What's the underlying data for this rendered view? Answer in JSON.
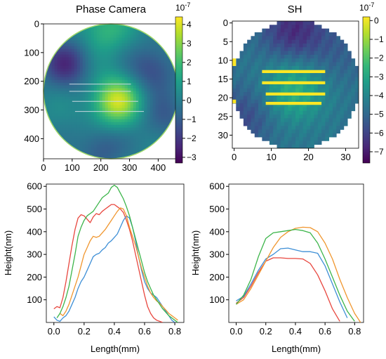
{
  "colors": {
    "viridis_stops": [
      "#440154",
      "#482878",
      "#3e4989",
      "#31688e",
      "#26828e",
      "#1f9e89",
      "#35b779",
      "#6ece58",
      "#b5de2b",
      "#fde725"
    ],
    "series_colors": [
      "#e8473f",
      "#3e8fd6",
      "#f0962e",
      "#3cb54a"
    ],
    "slice_line": "#c8d8e0",
    "sh_stripe": "#fde725"
  },
  "chart_data": [
    {
      "type": "heatmap",
      "title": "Phase Camera",
      "shape": "circular aperture",
      "x_ticks": [
        0,
        100,
        200,
        300,
        400
      ],
      "y_ticks": [
        0,
        100,
        200,
        300,
        400
      ],
      "xlim": [
        0,
        470
      ],
      "ylim": [
        470,
        0
      ],
      "colorbar": {
        "exponent": "10",
        "exponent_power": "-7",
        "ticks": [
          4,
          3,
          2,
          1,
          0,
          -1,
          -2,
          -3
        ],
        "range": [
          -3.3,
          4.4
        ]
      },
      "features": [
        {
          "kind": "high",
          "center": [
            255,
            270
          ],
          "value": 3.8
        },
        {
          "kind": "low",
          "center": [
            80,
            140
          ],
          "value": -2.2
        },
        {
          "kind": "low",
          "center": [
            380,
            160
          ],
          "value": -1.6
        },
        {
          "kind": "low",
          "center": [
            200,
            430
          ],
          "value": -1.2
        },
        {
          "kind": "high",
          "center": [
            210,
            20
          ],
          "value": 1.8
        },
        {
          "kind": "low",
          "center": [
            420,
            330
          ],
          "value": -1.0
        }
      ],
      "slice_lines": [
        {
          "y": 210,
          "x": [
            90,
            305
          ]
        },
        {
          "y": 235,
          "x": [
            90,
            305
          ]
        },
        {
          "y": 270,
          "x": [
            100,
            330
          ]
        },
        {
          "y": 305,
          "x": [
            110,
            350
          ]
        }
      ]
    },
    {
      "type": "heatmap",
      "title": "SH",
      "shape": "pixelated circular aperture",
      "x_ticks": [
        0,
        10,
        20,
        30
      ],
      "y_ticks": [
        0,
        5,
        10,
        15,
        20,
        25,
        30
      ],
      "grid_size": 34,
      "xlim": [
        -0.5,
        33.5
      ],
      "ylim": [
        33.5,
        -0.5
      ],
      "colorbar": {
        "exponent": "10",
        "exponent_power": "-7",
        "ticks": [
          0,
          -1,
          -2,
          -3,
          -4,
          -5,
          -6,
          -7
        ],
        "range": [
          -7.6,
          0.2
        ]
      },
      "features": [
        {
          "kind": "high",
          "center": [
            16,
            18
          ],
          "value": -2.6
        },
        {
          "kind": "low",
          "center": [
            16,
            2
          ],
          "value": -6.6
        },
        {
          "kind": "low",
          "center": [
            3,
            25
          ],
          "value": -5.8
        },
        {
          "kind": "low",
          "center": [
            28,
            8
          ],
          "value": -5.2
        }
      ],
      "highlight_stripes": [
        {
          "row": 13,
          "x": [
            7.5,
            24.5
          ]
        },
        {
          "row": 16,
          "x": [
            7.5,
            24.5
          ]
        },
        {
          "row": 19,
          "x": [
            8.5,
            24.5
          ]
        },
        {
          "row": 21.5,
          "x": [
            8.5,
            23.5
          ]
        }
      ],
      "edge_markers": [
        {
          "row": 10.5,
          "x": [
            -0.5,
            0.5
          ],
          "height": 2
        },
        {
          "row": 21,
          "x": [
            -0.5,
            0.5
          ],
          "height": 1
        }
      ]
    },
    {
      "type": "line",
      "xlabel": "Length(mm)",
      "ylabel": "Height(nm)",
      "xlim": [
        -0.05,
        0.86
      ],
      "ylim": [
        0,
        610
      ],
      "x_ticks": [
        0.0,
        0.2,
        0.4,
        0.6,
        0.8
      ],
      "x_tick_labels": [
        "0.0",
        "0.2",
        "0.4",
        "0.6",
        "0.8"
      ],
      "y_ticks": [
        100,
        200,
        300,
        400,
        500,
        600
      ],
      "series": [
        {
          "color": "#e8473f",
          "x": [
            0.0,
            0.02,
            0.04,
            0.06,
            0.08,
            0.1,
            0.12,
            0.14,
            0.16,
            0.18,
            0.2,
            0.22,
            0.24,
            0.26,
            0.28,
            0.3,
            0.32,
            0.34,
            0.36,
            0.38,
            0.4,
            0.42,
            0.44,
            0.46,
            0.48,
            0.5,
            0.52,
            0.54,
            0.56,
            0.58,
            0.6,
            0.62,
            0.64,
            0.66,
            0.68,
            0.7,
            0.72
          ],
          "y": [
            60,
            70,
            65,
            110,
            180,
            260,
            340,
            410,
            460,
            475,
            470,
            455,
            440,
            465,
            480,
            475,
            490,
            500,
            510,
            520,
            520,
            510,
            500,
            485,
            450,
            410,
            360,
            300,
            240,
            180,
            120,
            70,
            40,
            20,
            10,
            5,
            0
          ]
        },
        {
          "color": "#3e8fd6",
          "x": [
            0.0,
            0.02,
            0.04,
            0.06,
            0.08,
            0.1,
            0.12,
            0.14,
            0.16,
            0.18,
            0.2,
            0.22,
            0.24,
            0.26,
            0.28,
            0.3,
            0.32,
            0.34,
            0.36,
            0.38,
            0.4,
            0.42,
            0.44,
            0.46,
            0.48,
            0.5,
            0.52,
            0.54,
            0.56,
            0.58,
            0.6,
            0.62,
            0.64,
            0.66,
            0.68,
            0.7,
            0.72,
            0.74,
            0.76,
            0.78,
            0.8
          ],
          "y": [
            25,
            10,
            5,
            20,
            30,
            50,
            80,
            110,
            150,
            180,
            200,
            230,
            260,
            290,
            300,
            305,
            320,
            330,
            350,
            360,
            375,
            390,
            420,
            450,
            470,
            460,
            420,
            360,
            290,
            230,
            180,
            150,
            130,
            120,
            110,
            90,
            70,
            50,
            30,
            10,
            0
          ]
        },
        {
          "color": "#f0962e",
          "x": [
            0.04,
            0.06,
            0.08,
            0.1,
            0.12,
            0.14,
            0.16,
            0.18,
            0.2,
            0.22,
            0.24,
            0.26,
            0.28,
            0.3,
            0.32,
            0.34,
            0.36,
            0.38,
            0.4,
            0.42,
            0.44,
            0.46,
            0.48,
            0.5,
            0.52,
            0.54,
            0.56,
            0.58,
            0.6,
            0.62,
            0.64,
            0.66,
            0.68,
            0.7,
            0.72,
            0.74,
            0.76,
            0.78,
            0.8,
            0.82
          ],
          "y": [
            40,
            30,
            50,
            80,
            120,
            160,
            200,
            250,
            300,
            330,
            360,
            380,
            375,
            380,
            395,
            410,
            430,
            450,
            470,
            490,
            505,
            500,
            470,
            420,
            380,
            340,
            290,
            240,
            200,
            160,
            130,
            110,
            95,
            85,
            70,
            55,
            40,
            30,
            20,
            10
          ]
        },
        {
          "color": "#3cb54a",
          "x": [
            0.02,
            0.04,
            0.06,
            0.08,
            0.1,
            0.12,
            0.14,
            0.16,
            0.18,
            0.2,
            0.22,
            0.24,
            0.26,
            0.28,
            0.3,
            0.32,
            0.34,
            0.36,
            0.38,
            0.4,
            0.42,
            0.44,
            0.46,
            0.48,
            0.5,
            0.52,
            0.54,
            0.56,
            0.58,
            0.6,
            0.62,
            0.64,
            0.66,
            0.68,
            0.7,
            0.72,
            0.74,
            0.76,
            0.78,
            0.8,
            0.82
          ],
          "y": [
            20,
            40,
            70,
            110,
            160,
            230,
            300,
            380,
            420,
            450,
            470,
            480,
            490,
            510,
            530,
            550,
            560,
            570,
            595,
            605,
            595,
            570,
            545,
            510,
            470,
            420,
            370,
            320,
            270,
            220,
            180,
            150,
            120,
            100,
            80,
            60,
            45,
            30,
            20,
            10,
            0
          ]
        }
      ]
    },
    {
      "type": "line",
      "xlabel": "Length(mm)",
      "ylabel": "Height(nm)",
      "xlim": [
        -0.05,
        0.86
      ],
      "ylim": [
        0,
        610
      ],
      "x_ticks": [
        0.0,
        0.2,
        0.4,
        0.6,
        0.8
      ],
      "x_tick_labels": [
        "0.0",
        "0.2",
        "0.4",
        "0.6",
        "0.8"
      ],
      "y_ticks": [
        100,
        200,
        300,
        400,
        500,
        600
      ],
      "series": [
        {
          "color": "#e8473f",
          "x": [
            0.0,
            0.05,
            0.1,
            0.15,
            0.2,
            0.25,
            0.3,
            0.35,
            0.4,
            0.45,
            0.5,
            0.55,
            0.6,
            0.65,
            0.7
          ],
          "y": [
            85,
            110,
            160,
            220,
            270,
            285,
            285,
            282,
            282,
            280,
            260,
            210,
            140,
            60,
            5
          ]
        },
        {
          "color": "#3e8fd6",
          "x": [
            0.0,
            0.05,
            0.1,
            0.15,
            0.2,
            0.25,
            0.3,
            0.35,
            0.4,
            0.45,
            0.5,
            0.55,
            0.6,
            0.65,
            0.7,
            0.75
          ],
          "y": [
            95,
            115,
            170,
            230,
            280,
            300,
            325,
            328,
            320,
            312,
            312,
            305,
            250,
            170,
            90,
            20
          ]
        },
        {
          "color": "#f0962e",
          "x": [
            0.0,
            0.05,
            0.1,
            0.15,
            0.2,
            0.25,
            0.3,
            0.35,
            0.4,
            0.45,
            0.5,
            0.55,
            0.6,
            0.65,
            0.7,
            0.75,
            0.8,
            0.84
          ],
          "y": [
            80,
            100,
            150,
            210,
            270,
            330,
            375,
            400,
            415,
            420,
            418,
            400,
            350,
            280,
            190,
            110,
            40,
            0
          ]
        },
        {
          "color": "#3cb54a",
          "x": [
            0.0,
            0.05,
            0.1,
            0.15,
            0.2,
            0.25,
            0.3,
            0.35,
            0.4,
            0.45,
            0.5,
            0.55,
            0.6,
            0.65,
            0.7,
            0.75,
            0.8
          ],
          "y": [
            80,
            120,
            190,
            290,
            370,
            395,
            400,
            405,
            410,
            405,
            395,
            350,
            280,
            200,
            120,
            50,
            5
          ]
        }
      ]
    }
  ]
}
